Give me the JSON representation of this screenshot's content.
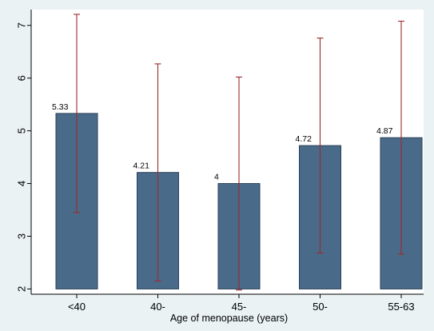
{
  "chart_data": {
    "type": "bar",
    "title": "",
    "xlabel": "Age of menopause (years)",
    "ylabel": "",
    "categories": [
      "<40",
      "40-",
      "45-",
      "50-",
      "55-63"
    ],
    "values": [
      5.33,
      4.21,
      4,
      4.72,
      4.87
    ],
    "value_labels": [
      "5.33",
      "4.21",
      "4",
      "4.72",
      "4.87"
    ],
    "error_low": [
      3.45,
      2.15,
      1.98,
      2.68,
      2.66
    ],
    "error_high": [
      7.21,
      6.27,
      6.02,
      6.76,
      7.08
    ],
    "ylim": [
      1.9,
      7.3
    ],
    "y_ticks": [
      2,
      3,
      4,
      5,
      6,
      7
    ],
    "bar_base": 2,
    "grid": false,
    "legend": "none",
    "colors": {
      "background": "#eaf2f3",
      "plot_area": "#ffffff",
      "bar_fill": "#4a6a8a",
      "bar_stroke": "#2b4158",
      "error_bar": "#9c2a2a",
      "axis": "#000000"
    }
  }
}
